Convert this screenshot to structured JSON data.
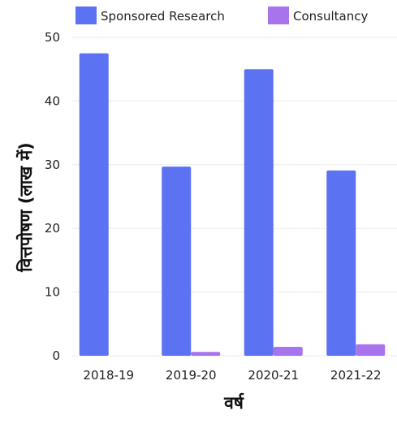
{
  "chart_data": {
    "type": "bar",
    "categories": [
      "2018-19",
      "2019-20",
      "2020-21",
      "2021-22"
    ],
    "series": [
      {
        "name": "Sponsored Research",
        "values": [
          47.5,
          29.7,
          45.0,
          29.1
        ],
        "color": "#5b72f2"
      },
      {
        "name": "Consultancy",
        "values": [
          0,
          0.6,
          1.4,
          1.8
        ],
        "color": "#a874ee"
      }
    ],
    "xlabel": "वर्ष",
    "ylabel": "वित्तपोषण (लाख में)",
    "ylim": [
      0,
      50
    ],
    "yticks": [
      0,
      10,
      20,
      30,
      40,
      50
    ],
    "grid": true,
    "legend_position": "top"
  }
}
